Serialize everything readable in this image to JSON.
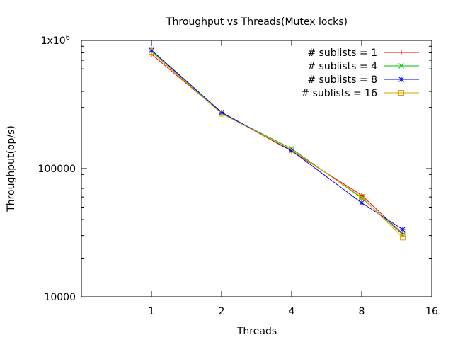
{
  "chart_data": {
    "type": "line",
    "title": "Throughput vs Threads(Mutex locks)",
    "xlabel": "Threads",
    "ylabel": "Throughput(op/s)",
    "x_scale": "log2",
    "y_scale": "log10",
    "xlim": [
      0.5,
      16
    ],
    "ylim": [
      10000,
      1000000
    ],
    "x_ticks": [
      1,
      2,
      4,
      8,
      16
    ],
    "x_tick_labels": [
      "1",
      "2",
      "4",
      "8",
      "16"
    ],
    "y_ticks": [
      10000,
      100000,
      1000000
    ],
    "y_tick_labels": [
      "10000",
      "100000",
      "1x10"
    ],
    "y_top_tick_superscript": "6",
    "legend_position": "top-right",
    "grid": false,
    "series": [
      {
        "name": "# sublists = 1",
        "color": "#ff0000",
        "marker": "plus",
        "x": [
          1,
          2,
          4,
          8,
          12
        ],
        "y": [
          780000,
          272000,
          137000,
          62000,
          31000
        ]
      },
      {
        "name": "# sublists = 4",
        "color": "#00c000",
        "marker": "cross",
        "x": [
          1,
          2,
          4,
          8,
          12
        ],
        "y": [
          830000,
          270000,
          143000,
          59000,
          30500
        ]
      },
      {
        "name": "# sublists = 8",
        "color": "#0000ff",
        "marker": "star",
        "x": [
          1,
          2,
          4,
          8,
          12
        ],
        "y": [
          840000,
          275000,
          138000,
          54000,
          33500
        ]
      },
      {
        "name": "# sublists = 16",
        "color": "#e0a000",
        "marker": "square",
        "x": [
          1,
          2,
          4,
          8,
          12
        ],
        "y": [
          815000,
          268000,
          140000,
          60000,
          29000
        ]
      }
    ]
  }
}
